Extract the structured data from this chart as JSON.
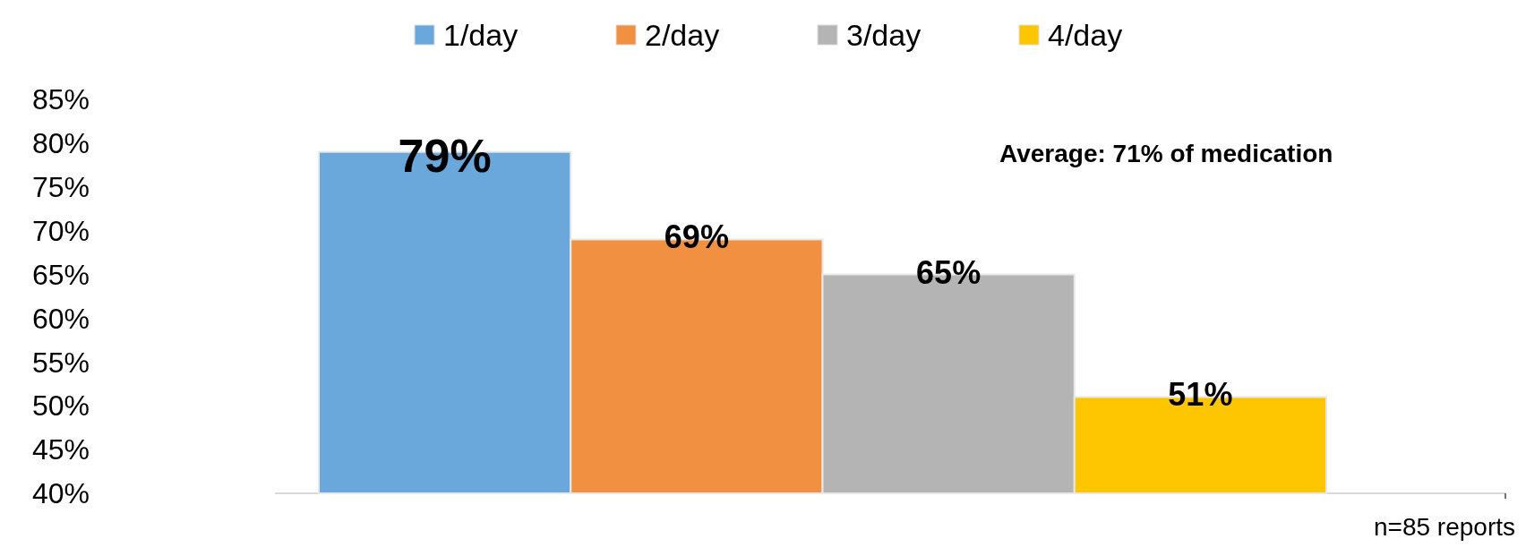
{
  "chart_data": {
    "type": "bar",
    "categories": [
      null
    ],
    "series": [
      {
        "name": "1/day",
        "color": "#6aa8dc",
        "values": [
          79
        ]
      },
      {
        "name": "2/day",
        "color": "#f09040",
        "values": [
          69
        ]
      },
      {
        "name": "3/day",
        "color": "#b4b4b4",
        "values": [
          65
        ]
      },
      {
        "name": "4/day",
        "color": "#fdc600",
        "values": [
          51
        ]
      }
    ],
    "ylim": [
      40,
      85
    ],
    "yticks": [
      {
        "value": 40,
        "label": "40%"
      },
      {
        "value": 45,
        "label": "45%"
      },
      {
        "value": 50,
        "label": "50%"
      },
      {
        "value": 55,
        "label": "55%"
      },
      {
        "value": 60,
        "label": "60%"
      },
      {
        "value": 65,
        "label": "65%"
      },
      {
        "value": 70,
        "label": "70%"
      },
      {
        "value": 75,
        "label": "75%"
      },
      {
        "value": 80,
        "label": "80%"
      },
      {
        "value": 85,
        "label": "85%"
      }
    ],
    "value_labels": [
      "79%",
      "69%",
      "65%",
      "51%"
    ],
    "legend": "top",
    "grid": false,
    "annotations": [
      "Average: 71% of medication",
      "n=85 reports"
    ]
  }
}
